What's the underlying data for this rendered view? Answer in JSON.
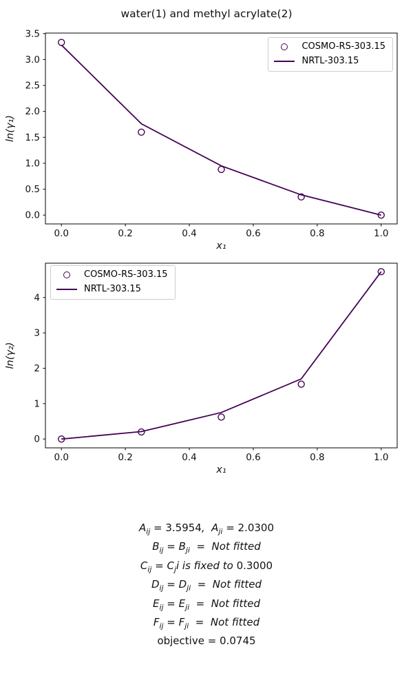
{
  "title": "water(1) and methyl acrylate(2)",
  "colors": {
    "series": "#440154",
    "legend_border": "#cccccc",
    "axis": "#000000"
  },
  "chart_data": [
    {
      "type": "line",
      "subtype": "scatter+line",
      "xlabel": "x₁",
      "ylabel": "ln(γ₁)",
      "xlim": [
        -0.05,
        1.05
      ],
      "ylim": [
        -0.17,
        3.51
      ],
      "xticks": [
        0.0,
        0.2,
        0.4,
        0.6,
        0.8,
        1.0
      ],
      "xtick_labels": [
        "0.0",
        "0.2",
        "0.4",
        "0.6",
        "0.8",
        "1.0"
      ],
      "yticks": [
        0.0,
        0.5,
        1.0,
        1.5,
        2.0,
        2.5,
        3.0,
        3.5
      ],
      "ytick_labels": [
        "0.0",
        "0.5",
        "1.0",
        "1.5",
        "2.0",
        "2.5",
        "3.0",
        "3.5"
      ],
      "grid": false,
      "legend_position": "upper right",
      "series": [
        {
          "name": "COSMO-RS-303.15",
          "type": "scatter",
          "marker": "open-circle",
          "x": [
            0.0,
            0.25,
            0.5,
            0.75,
            1.0
          ],
          "y": [
            3.33,
            1.6,
            0.88,
            0.35,
            0.0
          ]
        },
        {
          "name": "NRTL-303.15",
          "type": "line",
          "x": [
            0.0,
            0.25,
            0.5,
            0.75,
            1.0
          ],
          "y": [
            3.28,
            1.76,
            0.95,
            0.39,
            0.0
          ]
        }
      ]
    },
    {
      "type": "line",
      "subtype": "scatter+line",
      "xlabel": "x₁",
      "ylabel": "ln(γ₂)",
      "xlim": [
        -0.05,
        1.05
      ],
      "ylim": [
        -0.25,
        4.97
      ],
      "xticks": [
        0.0,
        0.2,
        0.4,
        0.6,
        0.8,
        1.0
      ],
      "xtick_labels": [
        "0.0",
        "0.2",
        "0.4",
        "0.6",
        "0.8",
        "1.0"
      ],
      "yticks": [
        0,
        1,
        2,
        3,
        4
      ],
      "ytick_labels": [
        "0",
        "1",
        "2",
        "3",
        "4"
      ],
      "grid": false,
      "legend_position": "upper left",
      "series": [
        {
          "name": "COSMO-RS-303.15",
          "type": "scatter",
          "marker": "open-circle",
          "x": [
            0.0,
            0.25,
            0.5,
            0.75,
            1.0
          ],
          "y": [
            0.0,
            0.2,
            0.62,
            1.55,
            4.73
          ]
        },
        {
          "name": "NRTL-303.15",
          "type": "line",
          "x": [
            0.0,
            0.25,
            0.5,
            0.75,
            1.0
          ],
          "y": [
            0.0,
            0.21,
            0.75,
            1.7,
            4.73
          ]
        }
      ]
    }
  ],
  "params": {
    "lines": [
      {
        "text": "A_{ij} = 3.5954,  A_{ji} = 2.0300",
        "style": "math"
      },
      {
        "text": "B_{ij} = B_{ji}  =  Not fitted",
        "style": "math"
      },
      {
        "text": "C_{ij} = C_{j}i is fixed to 0.3000",
        "style": "math"
      },
      {
        "text": "D_{ij} = D_{ji}  =  Not fitted",
        "style": "math"
      },
      {
        "text": "E_{ij} = E_{ji}  =  Not fitted",
        "style": "math"
      },
      {
        "text": "F_{ij} = F_{ji}  =  Not fitted",
        "style": "math"
      },
      {
        "text": "objective = 0.0745",
        "style": "plain"
      }
    ]
  }
}
